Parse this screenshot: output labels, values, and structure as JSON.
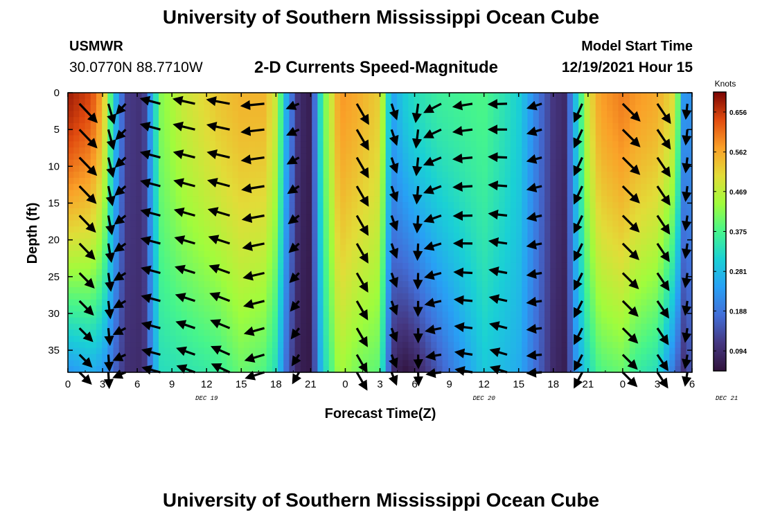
{
  "header": {
    "title": "University of Southern Mississippi Ocean Cube",
    "station_name": "USMWR",
    "station_coords": "30.0770N  88.7710W",
    "subtitle": "2-D Currents Speed-Magnitude",
    "model_label": "Model Start Time",
    "model_time": "12/19/2021 Hour 15"
  },
  "footer": {
    "title": "University of Southern Mississippi Ocean Cube"
  },
  "chart_data": {
    "type": "heatmap",
    "title": "2-D Currents Speed-Magnitude",
    "xlabel": "Forecast Time(Z)",
    "ylabel": "Depth (ft)",
    "x_ticks": [
      "0",
      "3",
      "6",
      "9",
      "12",
      "15",
      "18",
      "21",
      "0",
      "3",
      "6",
      "9",
      "12",
      "15",
      "18",
      "21",
      "0",
      "3",
      "6"
    ],
    "x_date_labels": [
      {
        "label": "DEC 19",
        "hour": 12
      },
      {
        "label": "DEC 20",
        "hour": 36
      },
      {
        "label": "DEC 21",
        "hour": 57
      }
    ],
    "x_range_hours": [
      0,
      54
    ],
    "y_ticks": [
      0,
      5,
      10,
      15,
      20,
      25,
      30,
      35
    ],
    "ylim": [
      0,
      38
    ],
    "y_inverted": true,
    "colorbar": {
      "label": "Knots",
      "min": 0.047,
      "max": 0.703,
      "ticks": [
        "0.656",
        "0.562",
        "0.469",
        "0.375",
        "0.281",
        "0.188",
        "0.094"
      ],
      "tick_values": [
        0.656,
        0.562,
        0.469,
        0.375,
        0.281,
        0.188,
        0.094
      ]
    },
    "speed_profile_knots": {
      "hours": [
        0,
        2,
        3,
        4,
        5,
        6.5,
        8,
        10,
        13,
        15,
        17,
        18,
        19,
        20,
        21,
        22,
        23.5,
        25,
        27,
        28,
        29,
        30,
        32,
        36,
        39,
        41,
        42,
        43,
        44,
        45,
        46,
        48,
        49,
        51,
        52.5,
        53.5,
        54
      ],
      "surface": [
        0.68,
        0.64,
        0.56,
        0.3,
        0.12,
        0.1,
        0.42,
        0.48,
        0.53,
        0.55,
        0.55,
        0.48,
        0.24,
        0.09,
        0.07,
        0.38,
        0.58,
        0.56,
        0.52,
        0.24,
        0.3,
        0.33,
        0.36,
        0.38,
        0.31,
        0.17,
        0.11,
        0.09,
        0.3,
        0.49,
        0.57,
        0.6,
        0.58,
        0.56,
        0.5,
        0.15,
        0.3
      ],
      "bottom": [
        0.23,
        0.26,
        0.24,
        0.17,
        0.1,
        0.09,
        0.33,
        0.34,
        0.36,
        0.4,
        0.38,
        0.33,
        0.16,
        0.07,
        0.06,
        0.3,
        0.45,
        0.41,
        0.39,
        0.1,
        0.05,
        0.07,
        0.15,
        0.3,
        0.26,
        0.15,
        0.09,
        0.07,
        0.24,
        0.32,
        0.38,
        0.4,
        0.36,
        0.33,
        0.18,
        0.08,
        0.2
      ]
    },
    "vector_directions_deg": {
      "hours": [
        0,
        3,
        4.5,
        8,
        14,
        20,
        21,
        23,
        24,
        27,
        30,
        30.5,
        32,
        35,
        39,
        44,
        46,
        48,
        52,
        54
      ],
      "surface": [
        135,
        140,
        210,
        285,
        280,
        250,
        155,
        150,
        150,
        150,
        185,
        190,
        240,
        260,
        270,
        225,
        140,
        135,
        150,
        195
      ],
      "bottom": [
        130,
        145,
        240,
        285,
        295,
        210,
        140,
        135,
        150,
        150,
        175,
        180,
        260,
        280,
        290,
        230,
        140,
        135,
        150,
        200
      ]
    },
    "vector_rows_depth_ft": [
      1.5,
      5,
      8.8,
      12.7,
      16.7,
      20.5,
      24.5,
      28.3,
      32,
      35.6,
      38
    ],
    "vector_cols_hour": [
      1,
      3.5,
      5,
      8,
      11,
      14,
      17,
      20,
      25,
      28,
      30.3,
      32.3,
      35,
      38,
      41,
      44.5,
      48,
      51,
      53.6
    ]
  }
}
